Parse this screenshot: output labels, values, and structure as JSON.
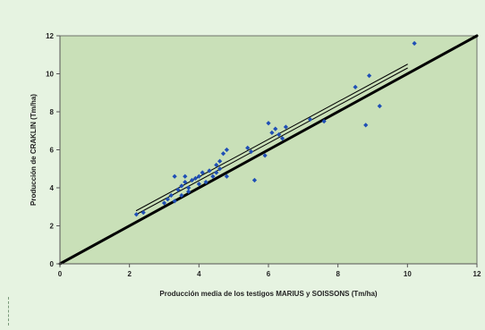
{
  "chart_data": {
    "type": "scatter",
    "xlabel": "Producción media de los testigos MARIUS y SOISSONS (Tm/ha)",
    "ylabel": "Producción de CRAKLIN (Tm/ha)",
    "xlim": [
      0,
      12
    ],
    "ylim": [
      0,
      12
    ],
    "xticks": [
      "0",
      "2",
      "4",
      "6",
      "8",
      "10",
      "12"
    ],
    "yticks": [
      "0",
      "2",
      "4",
      "6",
      "8",
      "10",
      "12"
    ],
    "grid": false,
    "legend": "none",
    "colors": {
      "plot_bg": "#c9e0b8",
      "page_bg": "#e6f3e1",
      "points": "#1f4fb5",
      "identity_line": "#000000",
      "fit_line": "#000000",
      "axis": "#555555"
    },
    "points": [
      {
        "x": 2.2,
        "y": 2.6
      },
      {
        "x": 2.4,
        "y": 2.7
      },
      {
        "x": 3.0,
        "y": 3.2
      },
      {
        "x": 3.1,
        "y": 3.4
      },
      {
        "x": 3.2,
        "y": 3.6
      },
      {
        "x": 3.3,
        "y": 3.3
      },
      {
        "x": 3.3,
        "y": 4.6
      },
      {
        "x": 3.4,
        "y": 3.9
      },
      {
        "x": 3.5,
        "y": 4.1
      },
      {
        "x": 3.5,
        "y": 3.6
      },
      {
        "x": 3.6,
        "y": 4.3
      },
      {
        "x": 3.6,
        "y": 4.6
      },
      {
        "x": 3.7,
        "y": 4.0
      },
      {
        "x": 3.7,
        "y": 3.8
      },
      {
        "x": 3.8,
        "y": 4.4
      },
      {
        "x": 3.9,
        "y": 4.5
      },
      {
        "x": 4.0,
        "y": 4.2
      },
      {
        "x": 4.0,
        "y": 4.6
      },
      {
        "x": 4.1,
        "y": 4.8
      },
      {
        "x": 4.2,
        "y": 4.3
      },
      {
        "x": 4.3,
        "y": 4.9
      },
      {
        "x": 4.4,
        "y": 4.6
      },
      {
        "x": 4.5,
        "y": 4.8
      },
      {
        "x": 4.5,
        "y": 5.2
      },
      {
        "x": 4.6,
        "y": 5.4
      },
      {
        "x": 4.6,
        "y": 5.0
      },
      {
        "x": 4.7,
        "y": 5.8
      },
      {
        "x": 4.8,
        "y": 6.0
      },
      {
        "x": 4.8,
        "y": 4.6
      },
      {
        "x": 5.6,
        "y": 4.4
      },
      {
        "x": 5.4,
        "y": 6.1
      },
      {
        "x": 5.5,
        "y": 5.9
      },
      {
        "x": 5.9,
        "y": 5.7
      },
      {
        "x": 6.0,
        "y": 7.4
      },
      {
        "x": 6.1,
        "y": 6.9
      },
      {
        "x": 6.2,
        "y": 7.1
      },
      {
        "x": 6.3,
        "y": 6.8
      },
      {
        "x": 6.4,
        "y": 6.6
      },
      {
        "x": 6.5,
        "y": 7.2
      },
      {
        "x": 7.2,
        "y": 7.6
      },
      {
        "x": 7.6,
        "y": 7.5
      },
      {
        "x": 8.5,
        "y": 9.3
      },
      {
        "x": 8.8,
        "y": 7.3
      },
      {
        "x": 8.9,
        "y": 9.9
      },
      {
        "x": 9.2,
        "y": 8.3
      },
      {
        "x": 10.2,
        "y": 11.6
      }
    ],
    "lines": [
      {
        "kind": "identity",
        "from": [
          0,
          0
        ],
        "to": [
          12,
          12
        ]
      },
      {
        "kind": "regression",
        "from": [
          2.2,
          2.8
        ],
        "to": [
          10.0,
          10.5
        ]
      },
      {
        "kind": "regression-parallel",
        "from": [
          2.2,
          2.6
        ],
        "to": [
          10.0,
          10.3
        ]
      }
    ]
  }
}
